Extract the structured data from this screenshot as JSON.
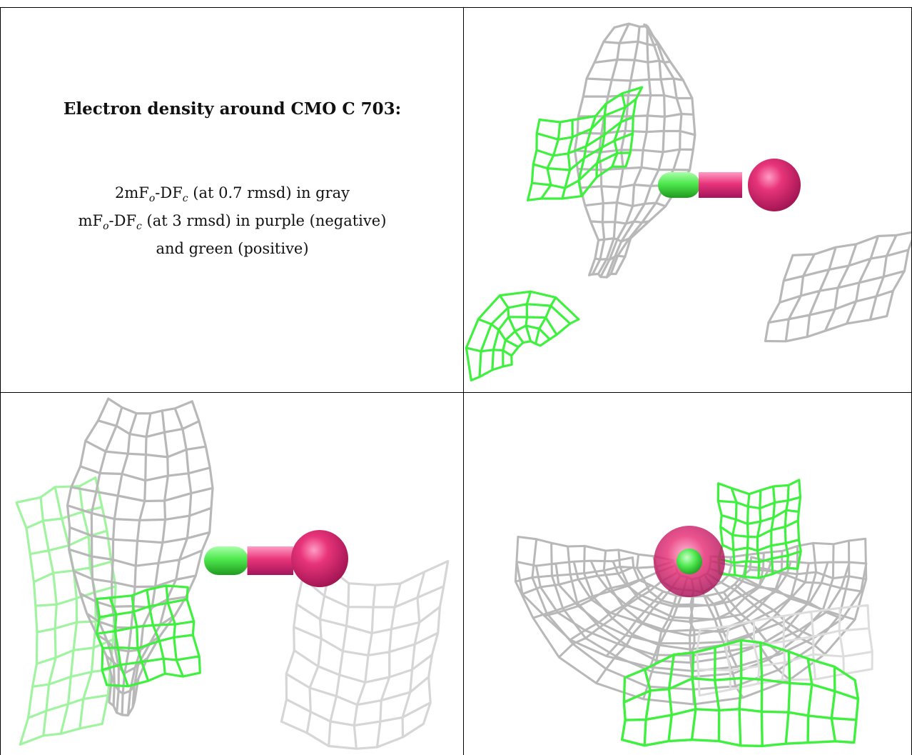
{
  "caption": {
    "title": "Electron density around CMO C 703:",
    "line1": {
      "a": "2mF",
      "sub1": "o",
      "b": "-DF",
      "sub2": "c",
      "c": " (at 0.7 rmsd) in gray"
    },
    "line2": {
      "a": "mF",
      "sub1": "o",
      "b": "-DF",
      "sub2": "c",
      "c": " (at 3 rmsd) in purple (negative)"
    },
    "line3": "and green (positive)"
  },
  "colors": {
    "gray_mesh": "#b8b8b8",
    "green_mesh": "#3ff03f",
    "carbon": "#4ee84e",
    "oxygen": "#e8347a",
    "border": "#000000"
  },
  "panels": [
    {
      "view": "top-right",
      "icon": "density-mesh-view"
    },
    {
      "view": "bottom-left",
      "icon": "density-mesh-view"
    },
    {
      "view": "bottom-right",
      "icon": "density-mesh-view"
    }
  ]
}
